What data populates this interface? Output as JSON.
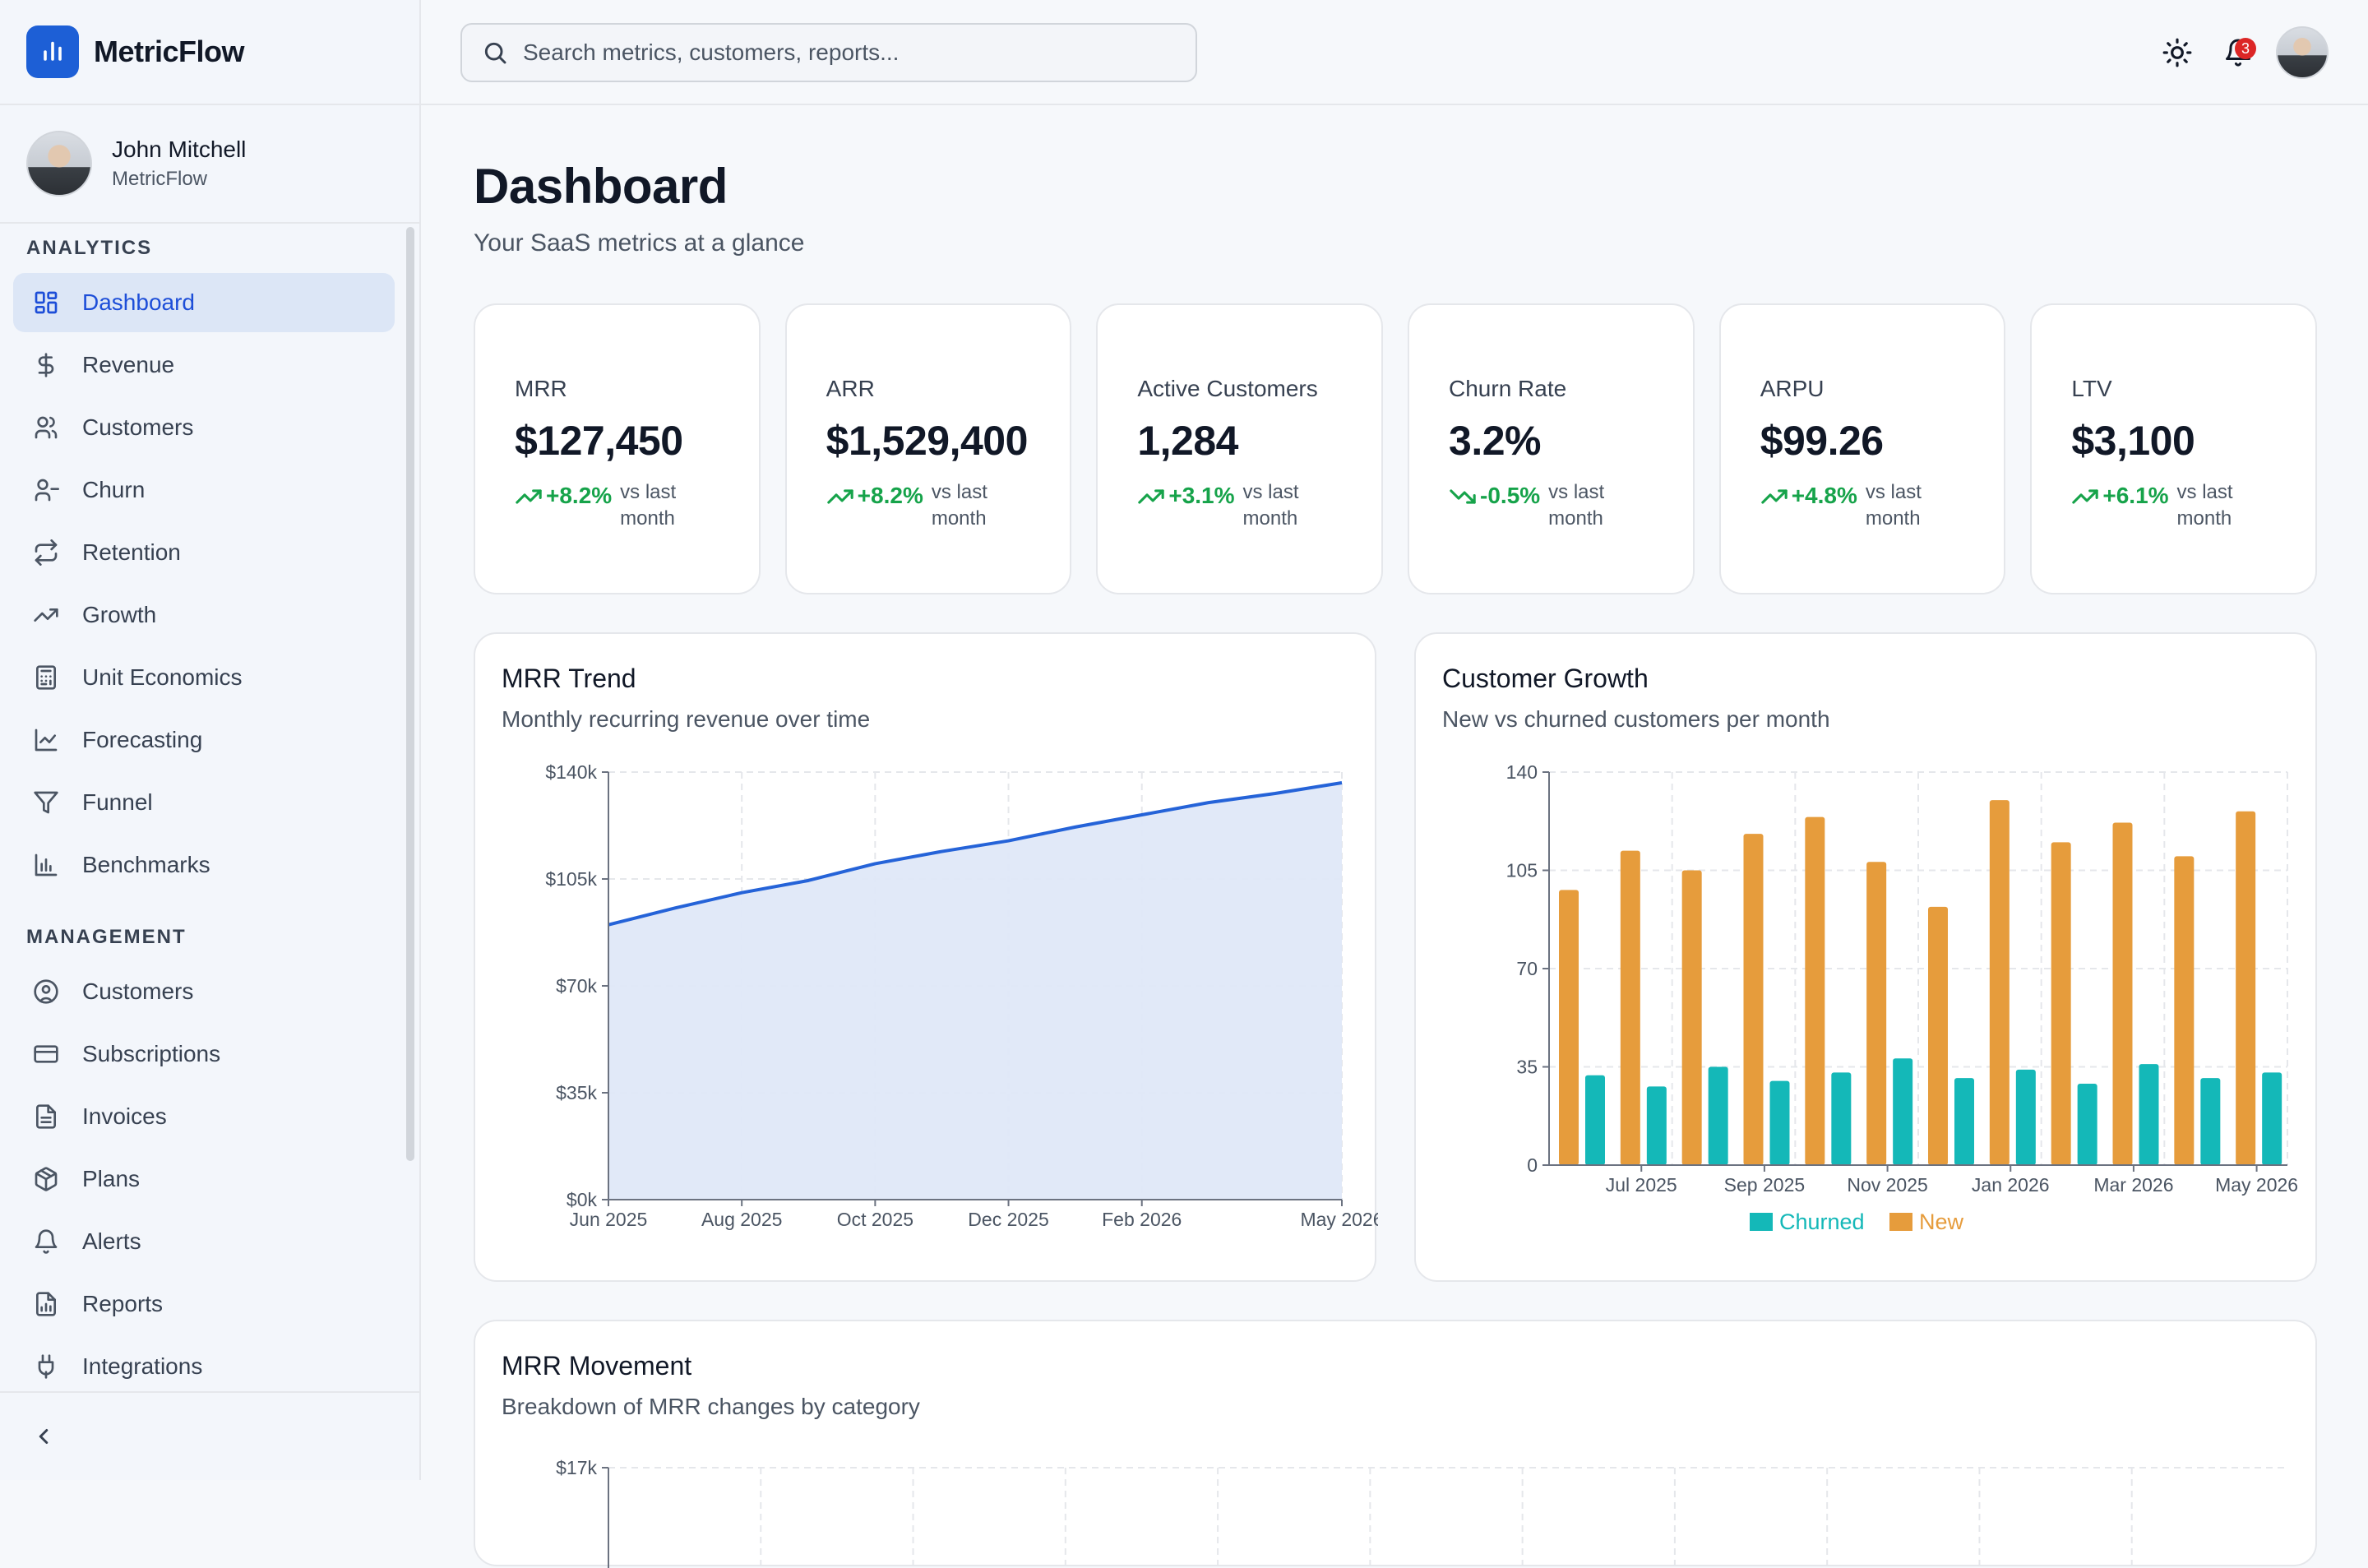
{
  "brand": {
    "name": "MetricFlow"
  },
  "user": {
    "name": "John Mitchell",
    "org": "MetricFlow"
  },
  "sidebar": {
    "analytics_label": "ANALYTICS",
    "analytics": [
      {
        "label": "Dashboard",
        "icon": "grid-icon"
      },
      {
        "label": "Revenue",
        "icon": "dollar-icon"
      },
      {
        "label": "Customers",
        "icon": "users-icon"
      },
      {
        "label": "Churn",
        "icon": "user-minus-icon"
      },
      {
        "label": "Retention",
        "icon": "repeat-icon"
      },
      {
        "label": "Growth",
        "icon": "trending-up-icon"
      },
      {
        "label": "Unit Economics",
        "icon": "calculator-icon"
      },
      {
        "label": "Forecasting",
        "icon": "line-chart-icon"
      },
      {
        "label": "Funnel",
        "icon": "filter-icon"
      },
      {
        "label": "Benchmarks",
        "icon": "bar-chart-icon"
      }
    ],
    "management_label": "MANAGEMENT",
    "management": [
      {
        "label": "Customers",
        "icon": "user-circle-icon"
      },
      {
        "label": "Subscriptions",
        "icon": "credit-card-icon"
      },
      {
        "label": "Invoices",
        "icon": "file-text-icon"
      },
      {
        "label": "Plans",
        "icon": "package-icon"
      },
      {
        "label": "Alerts",
        "icon": "bell-icon"
      },
      {
        "label": "Reports",
        "icon": "file-chart-icon"
      },
      {
        "label": "Integrations",
        "icon": "plug-icon"
      }
    ],
    "active": "Dashboard"
  },
  "search": {
    "placeholder": "Search metrics, customers, reports..."
  },
  "notifications": {
    "count": "3"
  },
  "page": {
    "title": "Dashboard",
    "subtitle": "Your SaaS metrics at a glance"
  },
  "kpis": [
    {
      "label": "MRR",
      "value": "$127,450",
      "delta": "+8.2%",
      "vs": "vs last month"
    },
    {
      "label": "ARR",
      "value": "$1,529,400",
      "delta": "+8.2%",
      "vs": "vs last month"
    },
    {
      "label": "Active Customers",
      "value": "1,284",
      "delta": "+3.1%",
      "vs": "vs last month"
    },
    {
      "label": "Churn Rate",
      "value": "3.2%",
      "delta": "-0.5%",
      "vs": "vs last month"
    },
    {
      "label": "ARPU",
      "value": "$99.26",
      "delta": "+4.8%",
      "vs": "vs last month"
    },
    {
      "label": "LTV",
      "value": "$3,100",
      "delta": "+6.1%",
      "vs": "vs last month"
    }
  ],
  "colors": {
    "accent": "#1d5fd6",
    "positive": "#16a34a",
    "churned": "#14b8b8",
    "new": "#e69c3c",
    "area_fill": "#dfe8f8",
    "line": "#2563d8"
  },
  "chart_data": [
    {
      "type": "area",
      "title": "MRR Trend",
      "subtitle": "Monthly recurring revenue over time",
      "x": [
        "Jun 2025",
        "Jul 2025",
        "Aug 2025",
        "Sep 2025",
        "Oct 2025",
        "Nov 2025",
        "Dec 2025",
        "Jan 2026",
        "Feb 2026",
        "Mar 2026",
        "Apr 2026",
        "May 2026"
      ],
      "xticks": [
        "Jun 2025",
        "Aug 2025",
        "Oct 2025",
        "Dec 2025",
        "Feb 2026",
        "May 2026"
      ],
      "y": [
        90000,
        95500,
        100500,
        104500,
        110000,
        114000,
        117500,
        122000,
        126000,
        130000,
        133000,
        136500
      ],
      "yticks": [
        "$0k",
        "$35k",
        "$70k",
        "$105k",
        "$140k"
      ],
      "ylim": [
        0,
        140000
      ],
      "grid": true
    },
    {
      "type": "bar",
      "title": "Customer Growth",
      "subtitle": "New vs churned customers per month",
      "categories": [
        "Jun 2025",
        "Jul 2025",
        "Aug 2025",
        "Sep 2025",
        "Oct 2025",
        "Nov 2025",
        "Dec 2025",
        "Jan 2026",
        "Feb 2026",
        "Mar 2026",
        "Apr 2026",
        "May 2026"
      ],
      "xticks": [
        "Jul 2025",
        "Sep 2025",
        "Nov 2025",
        "Jan 2026",
        "Mar 2026",
        "May 2026"
      ],
      "series": [
        {
          "name": "New",
          "values": [
            98,
            112,
            105,
            118,
            124,
            108,
            92,
            130,
            115,
            122,
            110,
            126
          ]
        },
        {
          "name": "Churned",
          "values": [
            32,
            28,
            35,
            30,
            33,
            38,
            31,
            34,
            29,
            36,
            31,
            33
          ]
        }
      ],
      "legend": [
        "Churned",
        "New"
      ],
      "yticks": [
        "0",
        "35",
        "70",
        "105",
        "140"
      ],
      "ylim": [
        0,
        140
      ],
      "grid": true,
      "legend_position": "bottom"
    },
    {
      "type": "bar",
      "title": "MRR Movement",
      "subtitle": "Breakdown of MRR changes by category",
      "yticks": [
        "$17k"
      ]
    }
  ]
}
